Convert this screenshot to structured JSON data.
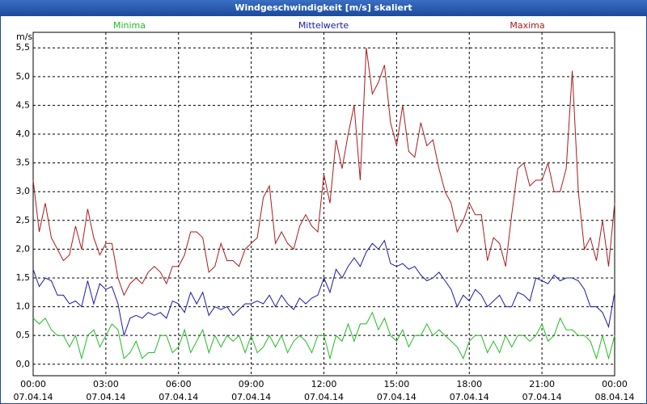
{
  "chart_data": {
    "type": "line",
    "title": "Windgeschwindigkeit [m/s] skaliert",
    "ylabel": "m/s",
    "x": [
      0,
      15,
      30,
      45,
      60,
      75,
      90,
      105,
      120,
      135,
      150,
      165,
      180,
      195,
      210,
      225,
      240,
      255,
      270,
      285,
      300,
      315,
      330,
      345,
      360,
      375,
      390,
      405,
      420,
      435,
      450,
      465,
      480,
      495,
      510,
      525,
      540,
      555,
      570,
      585,
      600,
      615,
      630,
      645,
      660,
      675,
      690,
      705,
      720,
      735,
      750,
      765,
      780,
      795,
      810,
      825,
      840,
      855,
      870,
      885,
      900,
      915,
      930,
      945,
      960,
      975,
      990,
      1005,
      1020,
      1035,
      1050,
      1065,
      1080,
      1095,
      1110,
      1125,
      1140,
      1155,
      1170,
      1185,
      1200,
      1215,
      1230,
      1245,
      1260,
      1275,
      1290,
      1305,
      1320,
      1335,
      1350,
      1365,
      1380,
      1395,
      1410,
      1425,
      1440
    ],
    "series": [
      {
        "name": "Minima",
        "color": "#22bb22",
        "values": [
          0.8,
          0.7,
          0.8,
          0.6,
          0.5,
          0.5,
          0.3,
          0.5,
          0.1,
          0.5,
          0.6,
          0.3,
          0.5,
          0.7,
          0.6,
          0.1,
          0.2,
          0.4,
          0.1,
          0.2,
          0.2,
          0.5,
          0.5,
          0.2,
          0.3,
          0.6,
          0.2,
          0.4,
          0.6,
          0.2,
          0.5,
          0.3,
          0.5,
          0.4,
          0.5,
          0.2,
          0.5,
          0.2,
          0.3,
          0.5,
          0.3,
          0.5,
          0.2,
          0.4,
          0.5,
          0.4,
          0.2,
          0.5,
          0.5,
          0.1,
          0.5,
          0.4,
          0.7,
          0.4,
          0.7,
          0.7,
          0.9,
          0.6,
          0.8,
          0.5,
          0.4,
          0.6,
          0.3,
          0.5,
          0.5,
          0.7,
          0.5,
          0.6,
          0.5,
          0.4,
          0.3,
          0.1,
          0.4,
          0.5,
          0.5,
          0.2,
          0.4,
          0.2,
          0.5,
          0.3,
          0.5,
          0.5,
          0.4,
          0.5,
          0.7,
          0.4,
          0.5,
          0.8,
          0.6,
          0.6,
          0.5,
          0.5,
          0.4,
          0.1,
          0.5,
          0.1,
          0.5
        ]
      },
      {
        "name": "Mittelwerte",
        "color": "#1a1aaa",
        "values": [
          1.65,
          1.35,
          1.5,
          1.45,
          1.2,
          1.2,
          1.05,
          1.1,
          1.0,
          1.45,
          1.05,
          1.4,
          1.3,
          1.35,
          1.05,
          0.5,
          0.8,
          0.85,
          0.8,
          0.9,
          0.85,
          0.9,
          0.8,
          1.1,
          1.05,
          0.9,
          1.25,
          1.05,
          1.25,
          0.85,
          1.0,
          0.95,
          1.0,
          0.85,
          0.95,
          1.05,
          1.05,
          1.1,
          1.05,
          1.2,
          1.0,
          1.2,
          1.05,
          0.95,
          1.15,
          1.05,
          1.15,
          1.2,
          1.5,
          1.25,
          1.65,
          1.5,
          1.7,
          1.85,
          1.7,
          1.95,
          2.1,
          2.0,
          2.15,
          1.75,
          1.7,
          1.75,
          1.65,
          1.7,
          1.55,
          1.45,
          1.5,
          1.6,
          1.45,
          1.3,
          1.0,
          1.2,
          1.1,
          1.3,
          1.2,
          1.0,
          1.1,
          1.2,
          1.0,
          1.0,
          1.25,
          1.2,
          1.1,
          1.5,
          1.45,
          1.4,
          1.55,
          1.45,
          1.5,
          1.5,
          1.45,
          1.3,
          1.0,
          1.0,
          0.9,
          0.65,
          1.25
        ]
      },
      {
        "name": "Maxima",
        "color": "#aa1a1a",
        "values": [
          3.2,
          2.3,
          2.8,
          2.2,
          2.0,
          1.8,
          1.9,
          2.4,
          2.0,
          2.7,
          2.2,
          1.9,
          2.1,
          2.1,
          1.5,
          1.2,
          1.4,
          1.5,
          1.4,
          1.6,
          1.7,
          1.6,
          1.4,
          1.7,
          1.7,
          1.9,
          2.3,
          2.3,
          2.2,
          1.6,
          1.7,
          2.1,
          1.8,
          1.8,
          1.7,
          2.0,
          2.1,
          2.2,
          2.9,
          3.1,
          2.1,
          2.3,
          2.1,
          2.0,
          2.4,
          2.6,
          2.4,
          2.3,
          3.3,
          2.8,
          3.9,
          3.4,
          4.0,
          4.5,
          3.2,
          5.5,
          4.7,
          4.9,
          5.2,
          4.2,
          3.8,
          4.5,
          3.7,
          3.6,
          4.2,
          3.8,
          3.9,
          3.4,
          3.0,
          2.8,
          2.3,
          2.5,
          2.8,
          2.6,
          2.6,
          1.8,
          2.2,
          2.1,
          1.7,
          2.6,
          3.4,
          3.5,
          3.1,
          3.2,
          3.2,
          3.5,
          3.0,
          3.0,
          3.4,
          5.1,
          3.0,
          2.0,
          2.2,
          1.8,
          2.5,
          1.7,
          2.8
        ]
      }
    ],
    "xlim": [
      0,
      1440
    ],
    "xticks": [
      {
        "value": 0,
        "label": "00:00",
        "date": "07.04.14"
      },
      {
        "value": 180,
        "label": "03:00",
        "date": "07.04.14"
      },
      {
        "value": 360,
        "label": "06:00",
        "date": "07.04.14"
      },
      {
        "value": 540,
        "label": "09:00",
        "date": "07.04.14"
      },
      {
        "value": 720,
        "label": "12:00",
        "date": "07.04.14"
      },
      {
        "value": 900,
        "label": "15:00",
        "date": "07.04.14"
      },
      {
        "value": 1080,
        "label": "18:00",
        "date": "07.04.14"
      },
      {
        "value": 1260,
        "label": "21:00",
        "date": "07.04.14"
      },
      {
        "value": 1440,
        "label": "00:00",
        "date": "08.04.14"
      }
    ],
    "ylim": [
      -0.2,
      5.7
    ],
    "yticks": [
      {
        "value": 0,
        "label": "0,0"
      },
      {
        "value": 0.5,
        "label": "0,5"
      },
      {
        "value": 1,
        "label": "1,0"
      },
      {
        "value": 1.5,
        "label": "1,5"
      },
      {
        "value": 2,
        "label": "2,0"
      },
      {
        "value": 2.5,
        "label": "2,5"
      },
      {
        "value": 3,
        "label": "3,0"
      },
      {
        "value": 3.5,
        "label": "3,5"
      },
      {
        "value": 4,
        "label": "4,0"
      },
      {
        "value": 4.5,
        "label": "4,5"
      },
      {
        "value": 5,
        "label": "5,0"
      },
      {
        "value": 5.5,
        "label": "5,5"
      }
    ],
    "grid": true
  }
}
